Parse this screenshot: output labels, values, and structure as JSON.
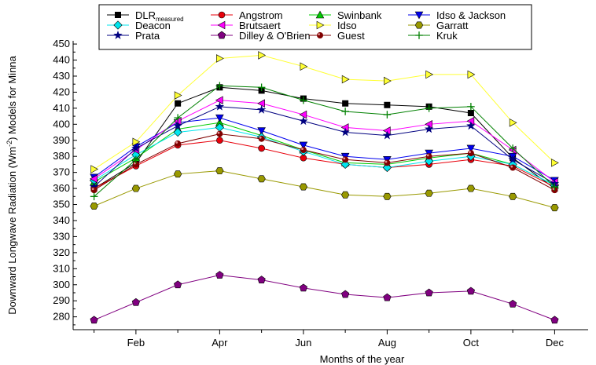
{
  "chart_data": {
    "type": "line",
    "xlabel": "Months of the year",
    "ylabel": "Downward Longwave Radiation (Wm",
    "ylabel_sup": "-2",
    "ylabel_tail": ") Models for Minna",
    "x": [
      1,
      2,
      3,
      4,
      5,
      6,
      7,
      8,
      9,
      10,
      11,
      12
    ],
    "x_tick_labels": [
      "Feb",
      "Apr",
      "Jun",
      "Aug",
      "Oct",
      "Dec"
    ],
    "x_tick_positions": [
      2,
      4,
      6,
      8,
      10,
      12
    ],
    "xlim": [
      0.5,
      12.8
    ],
    "ylim": [
      272,
      452
    ],
    "y_ticks": [
      280,
      290,
      300,
      310,
      320,
      330,
      340,
      350,
      360,
      370,
      380,
      390,
      400,
      410,
      420,
      430,
      440,
      450
    ],
    "grid": false,
    "legend_placement": "top",
    "series": [
      {
        "name": "DLR",
        "name_sub": "measured",
        "color": "#000000",
        "marker": "square",
        "values": [
          360,
          376,
          413,
          423,
          421,
          416,
          413,
          412,
          411,
          407,
          379,
          360
        ]
      },
      {
        "name": "Angstrom",
        "color": "#e8000b",
        "marker": "circle",
        "values": [
          360,
          374,
          387,
          390,
          385,
          379,
          375,
          373,
          375,
          378,
          374,
          361
        ]
      },
      {
        "name": "Swinbank",
        "color": "#00cc00",
        "marker": "triangle-up",
        "values": [
          364,
          379,
          397,
          401,
          393,
          384,
          376,
          375,
          379,
          382,
          375,
          362
        ]
      },
      {
        "name": "Idso & Jackson",
        "color": "#0000ee",
        "marker": "triangle-down",
        "values": [
          367,
          386,
          401,
          404,
          396,
          387,
          380,
          378,
          382,
          385,
          380,
          365
        ]
      },
      {
        "name": "Deacon",
        "color": "#00e5ee",
        "marker": "diamond",
        "values": [
          365,
          381,
          395,
          398,
          392,
          383,
          375,
          373,
          377,
          380,
          375,
          362
        ]
      },
      {
        "name": "Brutsaert",
        "color": "#ff00ff",
        "marker": "triangle-left",
        "values": [
          366,
          384,
          402,
          415,
          413,
          406,
          398,
          396,
          400,
          402,
          384,
          364
        ]
      },
      {
        "name": "Idso",
        "color": "#ffff33",
        "marker": "triangle-right",
        "values": [
          372,
          389,
          418,
          441,
          443,
          436,
          428,
          427,
          431,
          431,
          401,
          376
        ]
      },
      {
        "name": "Garratt",
        "color": "#999900",
        "marker": "hexagon",
        "values": [
          349,
          360,
          369,
          371,
          366,
          361,
          356,
          355,
          357,
          360,
          355,
          348
        ]
      },
      {
        "name": "Prata",
        "color": "#000080",
        "marker": "star",
        "values": [
          361,
          385,
          399,
          411,
          409,
          402,
          395,
          393,
          397,
          399,
          378,
          363
        ]
      },
      {
        "name": "Dilley & O'Brien",
        "color": "#800080",
        "marker": "pentagon",
        "values": [
          278,
          289,
          300,
          306,
          303,
          298,
          294,
          292,
          295,
          296,
          288,
          278
        ]
      },
      {
        "name": "Guest",
        "color": "#800000",
        "marker": "ball",
        "values": [
          359,
          375,
          388,
          394,
          391,
          384,
          378,
          376,
          380,
          382,
          373,
          359
        ]
      },
      {
        "name": "Kruk",
        "color": "#008000",
        "marker": "plus",
        "values": [
          355,
          378,
          404,
          424,
          423,
          415,
          408,
          406,
          410,
          411,
          385,
          361
        ]
      }
    ]
  }
}
